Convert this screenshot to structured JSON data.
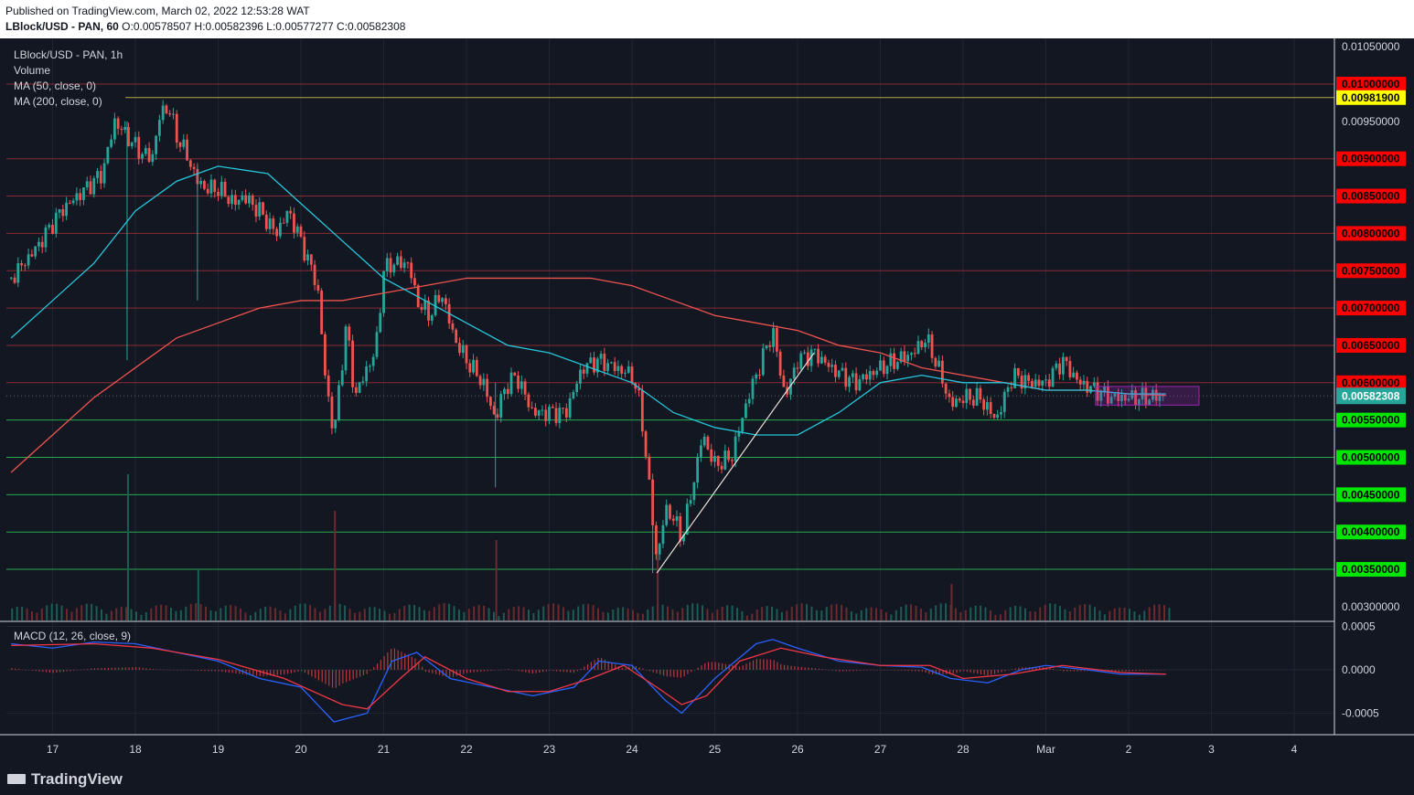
{
  "header": {
    "published": "Published on TradingView.com, March 02, 2022 12:53:28 WAT",
    "symbol": "LBlock/USD - PAN, 60",
    "ohlc": "O:0.00578507 H:0.00582396 L:0.00577277 C:0.00582308"
  },
  "legend": {
    "symbol": "LBlock/USD - PAN, 1h",
    "volume": "Volume",
    "ma50": "MA (50, close, 0)",
    "ma200": "MA (200, close, 0)",
    "macd": "MACD (12, 26, close, 9)"
  },
  "footer": {
    "brand": "TradingView"
  },
  "colors": {
    "background": "#131722",
    "up": "#26a69a",
    "down": "#ef5350",
    "ma50": "#26c6da",
    "ma200": "#ef5350",
    "resistance": "#f23645",
    "support": "#22ab4e",
    "highlight": "#ffff00",
    "last": "#26a69a",
    "macd_line": "#2962ff",
    "signal_line": "#f23645"
  },
  "chart_data": {
    "type": "candlestick",
    "price_axis": {
      "ticks": [
        "0.01050000",
        "0.00950000",
        "0.00300000"
      ],
      "ylim": [
        0.0028,
        0.0107
      ]
    },
    "x_axis": {
      "ticks": [
        "17",
        "18",
        "19",
        "20",
        "21",
        "22",
        "23",
        "24",
        "25",
        "26",
        "27",
        "28",
        "Mar",
        "2",
        "3",
        "4"
      ]
    },
    "horizontal_levels": [
      {
        "value": 0.01,
        "label": "0.01000000",
        "kind": "resistance"
      },
      {
        "value": 0.009819,
        "label": "0.00981900",
        "kind": "highlight"
      },
      {
        "value": 0.009,
        "label": "0.00900000",
        "kind": "resistance"
      },
      {
        "value": 0.0085,
        "label": "0.00850000",
        "kind": "resistance"
      },
      {
        "value": 0.008,
        "label": "0.00800000",
        "kind": "resistance"
      },
      {
        "value": 0.0075,
        "label": "0.00750000",
        "kind": "resistance"
      },
      {
        "value": 0.007,
        "label": "0.00700000",
        "kind": "resistance"
      },
      {
        "value": 0.0065,
        "label": "0.00650000",
        "kind": "resistance"
      },
      {
        "value": 0.006,
        "label": "0.00600000",
        "kind": "resistance"
      },
      {
        "value": 0.0055,
        "label": "0.00550000",
        "kind": "support"
      },
      {
        "value": 0.005,
        "label": "0.00500000",
        "kind": "support"
      },
      {
        "value": 0.0045,
        "label": "0.00450000",
        "kind": "support"
      },
      {
        "value": 0.004,
        "label": "0.00400000",
        "kind": "support"
      },
      {
        "value": 0.0035,
        "label": "0.00350000",
        "kind": "support"
      }
    ],
    "last_price": {
      "value": 0.00582308,
      "label": "0.00582308"
    },
    "close_path": [
      [
        16.5,
        0.0074
      ],
      [
        16.8,
        0.0078
      ],
      [
        17.1,
        0.0083
      ],
      [
        17.4,
        0.0086
      ],
      [
        17.6,
        0.0088
      ],
      [
        17.75,
        0.0095
      ],
      [
        17.9,
        0.0093
      ],
      [
        18.05,
        0.0091
      ],
      [
        18.2,
        0.009
      ],
      [
        18.3,
        0.0096
      ],
      [
        18.4,
        0.0097
      ],
      [
        18.5,
        0.0093
      ],
      [
        18.6,
        0.0091
      ],
      [
        18.75,
        0.0087
      ],
      [
        18.85,
        0.0086
      ],
      [
        19.0,
        0.0086
      ],
      [
        19.2,
        0.0084
      ],
      [
        19.3,
        0.0085
      ],
      [
        19.5,
        0.0083
      ],
      [
        19.7,
        0.008
      ],
      [
        19.85,
        0.0083
      ],
      [
        20.0,
        0.0079
      ],
      [
        20.2,
        0.0073
      ],
      [
        20.3,
        0.006
      ],
      [
        20.4,
        0.0053
      ],
      [
        20.55,
        0.0068
      ],
      [
        20.65,
        0.0058
      ],
      [
        20.8,
        0.0062
      ],
      [
        20.9,
        0.0064
      ],
      [
        21.0,
        0.0075
      ],
      [
        21.1,
        0.0076
      ],
      [
        21.3,
        0.0076
      ],
      [
        21.4,
        0.0071
      ],
      [
        21.55,
        0.0069
      ],
      [
        21.7,
        0.0072
      ],
      [
        21.85,
        0.0066
      ],
      [
        22.0,
        0.0063
      ],
      [
        22.2,
        0.006
      ],
      [
        22.35,
        0.0055
      ],
      [
        22.45,
        0.0059
      ],
      [
        22.6,
        0.0061
      ],
      [
        22.8,
        0.0056
      ],
      [
        23.0,
        0.0056
      ],
      [
        23.2,
        0.0056
      ],
      [
        23.4,
        0.0062
      ],
      [
        23.6,
        0.0063
      ],
      [
        23.8,
        0.0062
      ],
      [
        24.0,
        0.0061
      ],
      [
        24.1,
        0.0057
      ],
      [
        24.2,
        0.0047
      ],
      [
        24.3,
        0.0036
      ],
      [
        24.4,
        0.0043
      ],
      [
        24.5,
        0.0042
      ],
      [
        24.6,
        0.0039
      ],
      [
        24.75,
        0.0047
      ],
      [
        24.85,
        0.0053
      ],
      [
        25.0,
        0.0049
      ],
      [
        25.2,
        0.005
      ],
      [
        25.4,
        0.0058
      ],
      [
        25.6,
        0.0064
      ],
      [
        25.7,
        0.0067
      ],
      [
        25.85,
        0.0058
      ],
      [
        26.0,
        0.0063
      ],
      [
        26.2,
        0.0064
      ],
      [
        26.4,
        0.0062
      ],
      [
        26.7,
        0.006
      ],
      [
        27.0,
        0.0062
      ],
      [
        27.2,
        0.0063
      ],
      [
        27.4,
        0.0064
      ],
      [
        27.55,
        0.0066
      ],
      [
        27.7,
        0.0062
      ],
      [
        27.85,
        0.0057
      ],
      [
        28.0,
        0.0058
      ],
      [
        28.2,
        0.0058
      ],
      [
        28.4,
        0.0055
      ],
      [
        28.6,
        0.0061
      ],
      [
        28.8,
        0.006
      ],
      [
        29.0,
        0.006
      ],
      [
        29.2,
        0.0063
      ],
      [
        29.4,
        0.006
      ],
      [
        29.6,
        0.0059
      ],
      [
        29.8,
        0.0058
      ],
      [
        30.0,
        0.0058
      ],
      [
        30.2,
        0.0058
      ],
      [
        30.45,
        0.00582308
      ]
    ],
    "ma50_path": [
      [
        16.5,
        0.0066
      ],
      [
        17.0,
        0.0071
      ],
      [
        17.5,
        0.0076
      ],
      [
        18.0,
        0.0083
      ],
      [
        18.5,
        0.0087
      ],
      [
        19.0,
        0.0089
      ],
      [
        19.6,
        0.0088
      ],
      [
        20.0,
        0.0084
      ],
      [
        20.5,
        0.0079
      ],
      [
        21.0,
        0.0074
      ],
      [
        21.5,
        0.0071
      ],
      [
        22.0,
        0.0068
      ],
      [
        22.5,
        0.0065
      ],
      [
        23.0,
        0.0064
      ],
      [
        23.5,
        0.0062
      ],
      [
        24.0,
        0.006
      ],
      [
        24.5,
        0.0056
      ],
      [
        25.0,
        0.0054
      ],
      [
        25.5,
        0.0053
      ],
      [
        26.0,
        0.0053
      ],
      [
        26.5,
        0.0056
      ],
      [
        27.0,
        0.006
      ],
      [
        27.5,
        0.0061
      ],
      [
        28.0,
        0.006
      ],
      [
        28.5,
        0.006
      ],
      [
        29.0,
        0.0059
      ],
      [
        29.5,
        0.0059
      ],
      [
        30.0,
        0.00585
      ],
      [
        30.45,
        0.00585
      ]
    ],
    "ma200_path": [
      [
        16.5,
        0.0048
      ],
      [
        17.0,
        0.0053
      ],
      [
        17.5,
        0.0058
      ],
      [
        18.0,
        0.0062
      ],
      [
        18.5,
        0.0066
      ],
      [
        19.0,
        0.0068
      ],
      [
        19.5,
        0.007
      ],
      [
        20.0,
        0.0071
      ],
      [
        20.5,
        0.0071
      ],
      [
        21.0,
        0.0072
      ],
      [
        21.5,
        0.0073
      ],
      [
        22.0,
        0.0074
      ],
      [
        22.5,
        0.0074
      ],
      [
        23.0,
        0.0074
      ],
      [
        23.5,
        0.0074
      ],
      [
        24.0,
        0.0073
      ],
      [
        24.5,
        0.0071
      ],
      [
        25.0,
        0.0069
      ],
      [
        25.5,
        0.0068
      ],
      [
        26.0,
        0.0067
      ],
      [
        26.5,
        0.0065
      ],
      [
        27.0,
        0.0064
      ],
      [
        27.5,
        0.0062
      ],
      [
        28.0,
        0.0061
      ],
      [
        28.5,
        0.006
      ],
      [
        29.0,
        0.0059
      ],
      [
        29.5,
        0.0059
      ],
      [
        30.0,
        0.00585
      ],
      [
        30.45,
        0.00583
      ]
    ],
    "trendline": [
      [
        24.3,
        0.00345
      ],
      [
        26.2,
        0.0064
      ]
    ],
    "consolidation_box": {
      "x": [
        29.6,
        30.85
      ],
      "y": [
        0.0057,
        0.00595
      ]
    },
    "volume": {
      "spikes": [
        [
          17.9,
          1.0
        ],
        [
          20.4,
          0.75
        ],
        [
          22.35,
          0.55
        ],
        [
          24.3,
          0.45
        ],
        [
          18.75,
          0.35
        ],
        [
          27.85,
          0.25
        ]
      ]
    },
    "macd": {
      "ticks": [
        "0.0005",
        "0.0000",
        "-0.0005"
      ],
      "ylim": [
        -0.0007,
        0.0005
      ],
      "macd_path": [
        [
          16.5,
          0.0003
        ],
        [
          17.0,
          0.00025
        ],
        [
          17.5,
          0.00032
        ],
        [
          18.0,
          0.0003
        ],
        [
          18.5,
          0.0002
        ],
        [
          19.0,
          0.0001
        ],
        [
          19.5,
          -0.0001
        ],
        [
          20.0,
          -0.0002
        ],
        [
          20.4,
          -0.0006
        ],
        [
          20.8,
          -0.0005
        ],
        [
          21.1,
          0.0001
        ],
        [
          21.4,
          0.0002
        ],
        [
          21.8,
          -0.0001
        ],
        [
          22.3,
          -0.0002
        ],
        [
          22.8,
          -0.0003
        ],
        [
          23.3,
          -0.0002
        ],
        [
          23.6,
          0.0001
        ],
        [
          24.0,
          5e-05
        ],
        [
          24.4,
          -0.00035
        ],
        [
          24.6,
          -0.0005
        ],
        [
          25.0,
          -0.0001
        ],
        [
          25.5,
          0.0003
        ],
        [
          25.7,
          0.00035
        ],
        [
          26.0,
          0.00025
        ],
        [
          26.5,
          0.0001
        ],
        [
          27.0,
          5e-05
        ],
        [
          27.5,
          3e-05
        ],
        [
          27.85,
          -0.0001
        ],
        [
          28.3,
          -0.00015
        ],
        [
          28.7,
          0.0
        ],
        [
          29.0,
          5e-05
        ],
        [
          29.5,
          0.0
        ],
        [
          29.9,
          -5e-05
        ],
        [
          30.45,
          -5e-05
        ]
      ],
      "signal_path": [
        [
          16.5,
          0.00028
        ],
        [
          17.5,
          0.0003
        ],
        [
          18.2,
          0.00025
        ],
        [
          19.0,
          0.00012
        ],
        [
          19.8,
          -0.0001
        ],
        [
          20.5,
          -0.0004
        ],
        [
          20.8,
          -0.00045
        ],
        [
          21.2,
          -0.0001
        ],
        [
          21.5,
          0.00015
        ],
        [
          22.0,
          -0.0001
        ],
        [
          22.5,
          -0.00025
        ],
        [
          23.0,
          -0.00025
        ],
        [
          23.5,
          -0.0001
        ],
        [
          23.9,
          5e-05
        ],
        [
          24.3,
          -0.0002
        ],
        [
          24.6,
          -0.0004
        ],
        [
          24.9,
          -0.0003
        ],
        [
          25.3,
          0.0001
        ],
        [
          25.8,
          0.00025
        ],
        [
          26.3,
          0.00015
        ],
        [
          27.0,
          5e-05
        ],
        [
          27.6,
          5e-05
        ],
        [
          28.0,
          -0.0001
        ],
        [
          28.6,
          -5e-05
        ],
        [
          29.2,
          5e-05
        ],
        [
          29.9,
          -3e-05
        ],
        [
          30.45,
          -5e-05
        ]
      ]
    }
  }
}
